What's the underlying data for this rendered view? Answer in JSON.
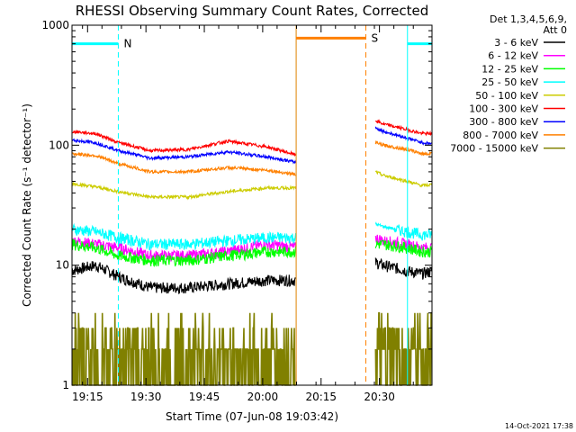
{
  "chart_data": {
    "type": "line",
    "title": "RHESSI Observing Summary Count Rates, Corrected",
    "ylabel": "Corrected Count Rate (s⁻¹ detector⁻¹)",
    "xlabel": "Start Time (07-Jun-08 19:03:42)",
    "y_scale": "log",
    "ylim": [
      1,
      1000
    ],
    "y_ticks": [
      {
        "value": 1,
        "label": "1"
      },
      {
        "value": 10,
        "label": "10"
      },
      {
        "value": 100,
        "label": "100"
      },
      {
        "value": 1000,
        "label": "1000"
      }
    ],
    "xlim_minutes": [
      0,
      51.3
    ],
    "x_ticks": [
      {
        "t": 11.3,
        "label": "19:15"
      },
      {
        "t": 26.3,
        "label": "19:30"
      },
      {
        "t": 41.3,
        "label": "19:45"
      },
      {
        "t": 56.3,
        "label": "20:00"
      },
      {
        "t": 71.3,
        "label": "20:15"
      },
      {
        "t": 86.3,
        "label": "20:30"
      }
    ],
    "legend_header": [
      "Det 1,3,4,5,6,9,",
      "Att 0"
    ],
    "legend_placement": "right",
    "series": [
      {
        "name": "3 - 6 keV",
        "color": "#000000",
        "segments": [
          {
            "t": [
              0,
              6,
              12,
              20,
              30,
              40,
              50,
              57.5
            ],
            "v": [
              9,
              10,
              8,
              6.5,
              6.5,
              7,
              7.5,
              7.5
            ]
          },
          {
            "t": [
              78,
              80,
              86,
              90,
              92.5
            ],
            "v": [
              10.5,
              10,
              9,
              8.5,
              9
            ]
          }
        ]
      },
      {
        "name": "6 - 12 keV",
        "color": "#ff00ff",
        "segments": [
          {
            "t": [
              0,
              6,
              12,
              20,
              30,
              40,
              50,
              57.5
            ],
            "v": [
              16,
              15,
              14,
              12,
              12,
              13,
              15,
              14
            ]
          },
          {
            "t": [
              78,
              80,
              86,
              90,
              92.5
            ],
            "v": [
              17,
              16,
              15,
              14,
              14
            ]
          }
        ]
      },
      {
        "name": "12 - 25 keV",
        "color": "#00ff00",
        "segments": [
          {
            "t": [
              0,
              6,
              12,
              20,
              30,
              40,
              50,
              57.5
            ],
            "v": [
              15,
              14,
              12,
              11,
              11,
              12,
              13,
              13
            ]
          },
          {
            "t": [
              78,
              80,
              86,
              90,
              92.5
            ],
            "v": [
              15,
              15,
              14,
              13,
              13
            ]
          }
        ]
      },
      {
        "name": "25 - 50 keV",
        "color": "#00ffff",
        "segments": [
          {
            "t": [
              0,
              6,
              12,
              20,
              30,
              40,
              50,
              57.5
            ],
            "v": [
              20,
              19,
              17,
              15,
              15,
              16,
              17,
              17
            ]
          },
          {
            "t": [
              78,
              80,
              86,
              90,
              92.5
            ],
            "v": [
              22,
              21,
              19,
              18,
              18
            ]
          }
        ]
      },
      {
        "name": "50 - 100 keV",
        "color": "#cccc00",
        "segments": [
          {
            "t": [
              0,
              6,
              12,
              20,
              30,
              40,
              50,
              57.5
            ],
            "v": [
              48,
              45,
              41,
              37,
              37,
              41,
              44,
              44
            ]
          },
          {
            "t": [
              78,
              80,
              86,
              90,
              92.5
            ],
            "v": [
              60,
              56,
              50,
              46,
              47
            ]
          }
        ]
      },
      {
        "name": "100 - 300 keV",
        "color": "#ff0000",
        "segments": [
          {
            "t": [
              0,
              6,
              12,
              20,
              30,
              40,
              50,
              57.5
            ],
            "v": [
              130,
              125,
              105,
              90,
              92,
              108,
              97,
              83
            ]
          },
          {
            "t": [
              78,
              80,
              86,
              90,
              92.5
            ],
            "v": [
              160,
              150,
              135,
              125,
              125
            ]
          }
        ]
      },
      {
        "name": "300 - 800 keV",
        "color": "#0000ff",
        "segments": [
          {
            "t": [
              0,
              6,
              12,
              20,
              30,
              40,
              50,
              57.5
            ],
            "v": [
              110,
              105,
              90,
              78,
              80,
              88,
              80,
              72
            ]
          },
          {
            "t": [
              78,
              80,
              86,
              90,
              92.5
            ],
            "v": [
              140,
              130,
              115,
              105,
              103
            ]
          }
        ]
      },
      {
        "name": "800 - 7000 keV",
        "color": "#ff8000",
        "segments": [
          {
            "t": [
              0,
              6,
              12,
              20,
              30,
              40,
              50,
              57.5
            ],
            "v": [
              85,
              82,
              70,
              60,
              60,
              65,
              62,
              57
            ]
          },
          {
            "t": [
              78,
              80,
              86,
              90,
              92.5
            ],
            "v": [
              105,
              100,
              92,
              85,
              85
            ]
          }
        ]
      },
      {
        "name": "7000 - 15000 keV",
        "color": "#808000",
        "segments": [
          {
            "t": [
              0,
              12,
              40,
              57.5
            ],
            "v": [
              2,
              1.4,
              2,
              2
            ]
          },
          {
            "t": [
              78,
              86,
              92.5
            ],
            "v": [
              1.7,
              1.7,
              1.7
            ]
          }
        ]
      }
    ],
    "annotations": [
      {
        "label": "N",
        "color": "#00ffff",
        "t_start": 0,
        "t_end": 11.9,
        "level": 700
      },
      {
        "label": "",
        "color": "#00ffff",
        "t_start": 86.2,
        "t_end": 92.5,
        "level": 700
      },
      {
        "label": "S",
        "color": "#ff8000",
        "t_start": 57.6,
        "t_end": 75.5,
        "level": 780
      }
    ],
    "vertical_markers": [
      {
        "t": 11.9,
        "color": "#00ffff",
        "style": "dashed"
      },
      {
        "t": 57.6,
        "color": "#00ffff",
        "style": "solid"
      },
      {
        "t": 57.6,
        "color": "#ff8000",
        "style": "solid"
      },
      {
        "t": 75.5,
        "color": "#ff8000",
        "style": "dashed"
      },
      {
        "t": 86.2,
        "color": "#00ffff",
        "style": "solid"
      },
      {
        "t": 92.5,
        "color": "#00ffff",
        "style": "dashed"
      }
    ],
    "data_gaps": [
      [
        57.7,
        77.8
      ]
    ]
  },
  "stamp": "14-Oct-2021 17:38"
}
